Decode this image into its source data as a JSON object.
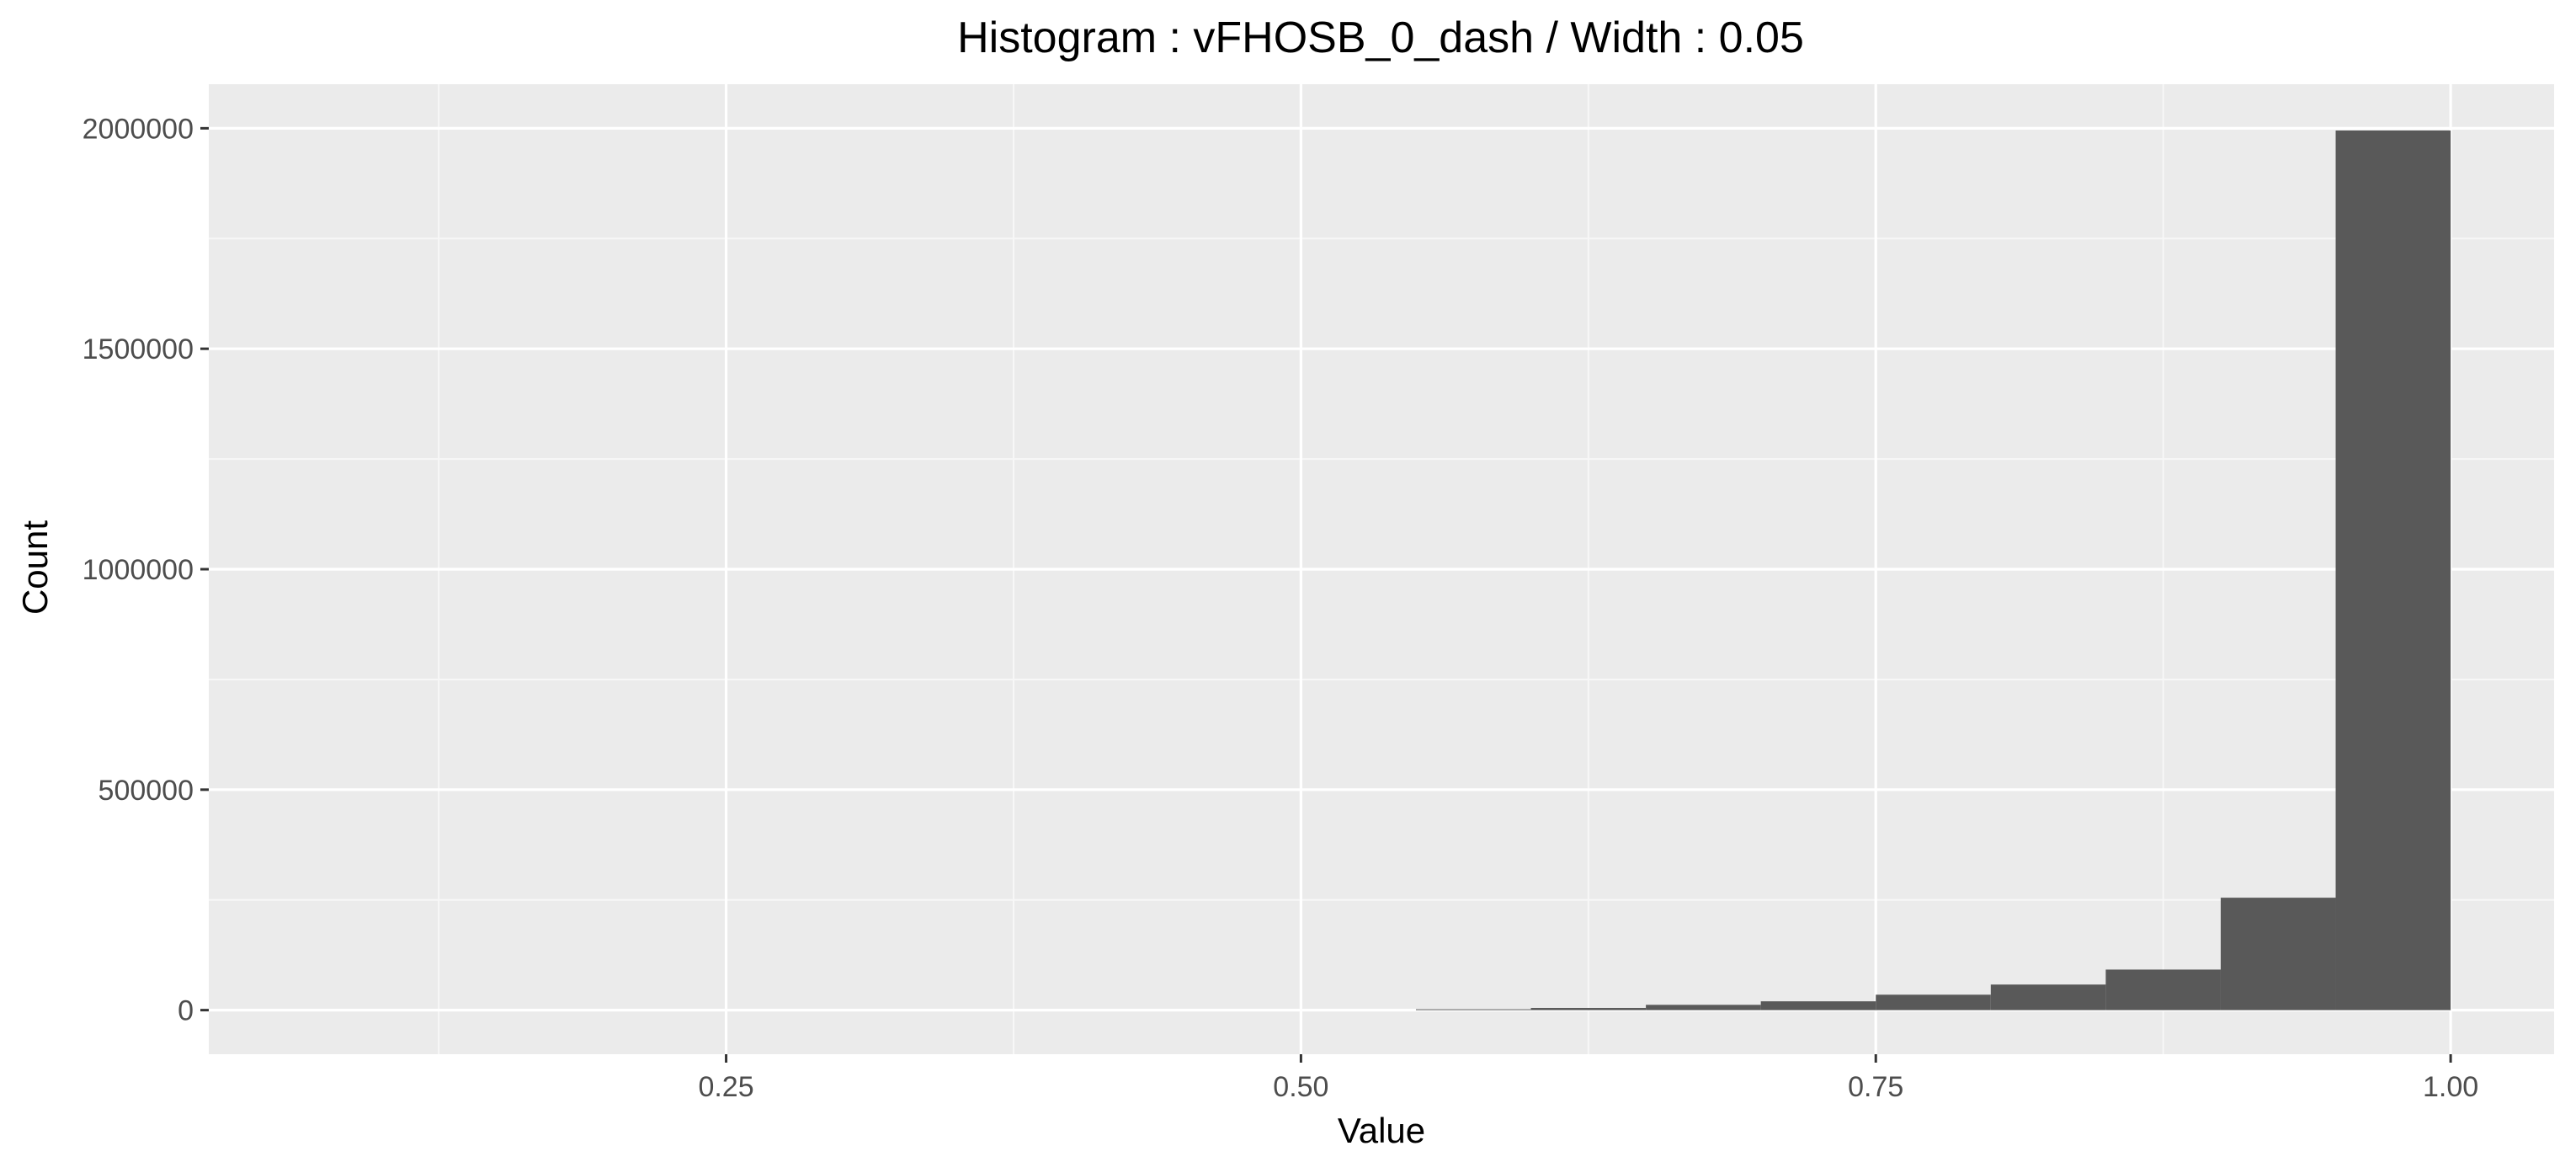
{
  "chart_data": {
    "type": "bar",
    "title": "Histogram : vFHOSB_0_dash / Width : 0.05",
    "xlabel": "Value",
    "ylabel": "Count",
    "bin_width": 0.05,
    "xlim": [
      0.025,
      1.045
    ],
    "ylim": [
      -100000,
      2100000
    ],
    "x_ticks": [
      0.25,
      0.5,
      0.75,
      1.0
    ],
    "x_tick_labels": [
      "0.25",
      "0.50",
      "0.75",
      "1.00"
    ],
    "y_ticks": [
      0,
      500000,
      1000000,
      1500000,
      2000000
    ],
    "y_tick_labels": [
      "0",
      "500000",
      "1000000",
      "1500000",
      "2000000"
    ],
    "bins": [
      {
        "x0": 0.55,
        "x1": 0.6,
        "value": 2000
      },
      {
        "x0": 0.6,
        "x1": 0.65,
        "value": 5000
      },
      {
        "x0": 0.65,
        "x1": 0.7,
        "value": 12000
      },
      {
        "x0": 0.7,
        "x1": 0.75,
        "value": 20000
      },
      {
        "x0": 0.75,
        "x1": 0.8,
        "value": 35000
      },
      {
        "x0": 0.8,
        "x1": 0.85,
        "value": 58000
      },
      {
        "x0": 0.85,
        "x1": 0.9,
        "value": 92000
      },
      {
        "x0": 0.9,
        "x1": 0.95,
        "value": 255000
      },
      {
        "x0": 0.95,
        "x1": 1.0,
        "value": 1995000
      }
    ],
    "grid": true,
    "colors": {
      "panel_background": "#EBEBEB",
      "grid_major": "#FFFFFF",
      "grid_minor": "#F7F7F7",
      "bar_fill": "#595959",
      "tick_mark": "#333333"
    }
  }
}
